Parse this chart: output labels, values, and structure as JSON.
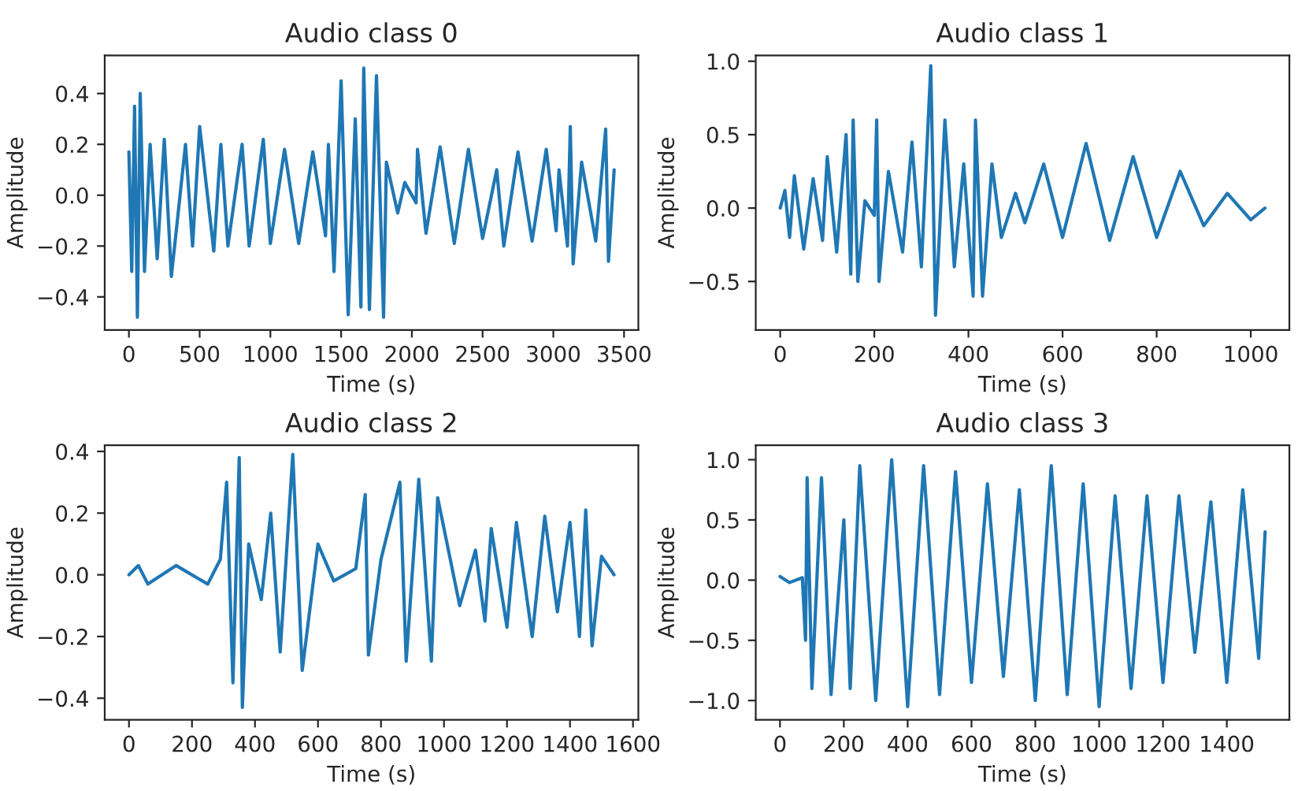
{
  "chart_data": [
    {
      "type": "line",
      "title": "Audio class 0",
      "xlabel": "Time (s)",
      "ylabel": "Amplitude",
      "xlim": [
        -171,
        3601
      ],
      "ylim": [
        -0.53,
        0.55
      ],
      "xticks": [
        0,
        500,
        1000,
        1500,
        2000,
        2500,
        3000,
        3500
      ],
      "yticks": [
        {
          "value": -0.4,
          "label": "−0.4"
        },
        {
          "value": -0.2,
          "label": "−0.2"
        },
        {
          "value": 0.0,
          "label": "0.0"
        },
        {
          "value": 0.2,
          "label": "0.2"
        },
        {
          "value": 0.4,
          "label": "0.4"
        }
      ],
      "grid": false,
      "legend": false,
      "series": [
        {
          "color": "#1f77b4",
          "x": [
            0,
            20,
            40,
            60,
            80,
            110,
            150,
            200,
            250,
            300,
            400,
            450,
            500,
            600,
            650,
            700,
            800,
            850,
            950,
            1000,
            1100,
            1200,
            1300,
            1390,
            1410,
            1450,
            1500,
            1550,
            1600,
            1640,
            1660,
            1700,
            1750,
            1800,
            1820,
            1900,
            1950,
            2030,
            2040,
            2100,
            2200,
            2300,
            2400,
            2500,
            2600,
            2650,
            2750,
            2850,
            2950,
            3020,
            3040,
            3100,
            3120,
            3140,
            3200,
            3300,
            3370,
            3390,
            3430
          ],
          "values": [
            0.17,
            -0.3,
            0.35,
            -0.48,
            0.4,
            -0.3,
            0.2,
            -0.25,
            0.22,
            -0.32,
            0.2,
            -0.2,
            0.27,
            -0.22,
            0.2,
            -0.2,
            0.2,
            -0.2,
            0.22,
            -0.19,
            0.18,
            -0.19,
            0.17,
            -0.16,
            0.2,
            -0.3,
            0.45,
            -0.47,
            0.3,
            -0.44,
            0.5,
            -0.45,
            0.47,
            -0.48,
            0.13,
            -0.07,
            0.05,
            -0.03,
            0.18,
            -0.15,
            0.19,
            -0.19,
            0.18,
            -0.17,
            0.1,
            -0.2,
            0.17,
            -0.18,
            0.18,
            -0.14,
            0.1,
            -0.2,
            0.27,
            -0.27,
            0.13,
            -0.18,
            0.26,
            -0.26,
            0.1
          ]
        }
      ]
    },
    {
      "type": "line",
      "title": "Audio class 1",
      "xlabel": "Time (s)",
      "ylabel": "Amplitude",
      "xlim": [
        -52,
        1082
      ],
      "ylim": [
        -0.83,
        1.04
      ],
      "xticks": [
        0,
        200,
        400,
        600,
        800,
        1000
      ],
      "yticks": [
        {
          "value": -0.5,
          "label": "−0.5"
        },
        {
          "value": 0.0,
          "label": "0.0"
        },
        {
          "value": 0.5,
          "label": "0.5"
        },
        {
          "value": 1.0,
          "label": "1.0"
        }
      ],
      "grid": false,
      "legend": false,
      "series": [
        {
          "color": "#1f77b4",
          "x": [
            0,
            10,
            20,
            30,
            50,
            70,
            90,
            100,
            120,
            140,
            150,
            155,
            165,
            180,
            200,
            205,
            210,
            230,
            260,
            280,
            300,
            320,
            330,
            350,
            370,
            390,
            410,
            415,
            430,
            450,
            470,
            500,
            520,
            560,
            600,
            650,
            700,
            750,
            800,
            850,
            900,
            950,
            1000,
            1030
          ],
          "values": [
            0.0,
            0.12,
            -0.2,
            0.22,
            -0.28,
            0.2,
            -0.22,
            0.35,
            -0.3,
            0.5,
            -0.45,
            0.6,
            -0.5,
            0.05,
            -0.05,
            0.6,
            -0.5,
            0.25,
            -0.3,
            0.45,
            -0.4,
            0.97,
            -0.73,
            0.6,
            -0.4,
            0.3,
            -0.6,
            0.6,
            -0.6,
            0.3,
            -0.2,
            0.1,
            -0.1,
            0.3,
            -0.2,
            0.44,
            -0.22,
            0.35,
            -0.2,
            0.25,
            -0.12,
            0.1,
            -0.08,
            0.0
          ]
        }
      ]
    },
    {
      "type": "line",
      "title": "Audio class 2",
      "xlabel": "Time (s)",
      "ylabel": "Amplitude",
      "xlim": [
        -77,
        1617
      ],
      "ylim": [
        -0.47,
        0.42
      ],
      "xticks": [
        0,
        200,
        400,
        600,
        800,
        1000,
        1200,
        1400,
        1600
      ],
      "yticks": [
        {
          "value": -0.4,
          "label": "−0.4"
        },
        {
          "value": -0.2,
          "label": "−0.2"
        },
        {
          "value": 0.0,
          "label": "0.0"
        },
        {
          "value": 0.2,
          "label": "0.2"
        },
        {
          "value": 0.4,
          "label": "0.4"
        }
      ],
      "grid": false,
      "legend": false,
      "series": [
        {
          "color": "#1f77b4",
          "x": [
            0,
            30,
            60,
            150,
            250,
            290,
            310,
            330,
            350,
            360,
            380,
            420,
            450,
            480,
            520,
            550,
            600,
            650,
            720,
            750,
            760,
            800,
            860,
            880,
            920,
            960,
            980,
            1050,
            1100,
            1130,
            1150,
            1200,
            1230,
            1280,
            1320,
            1360,
            1400,
            1430,
            1450,
            1470,
            1500,
            1540
          ],
          "values": [
            0.0,
            0.03,
            -0.03,
            0.03,
            -0.03,
            0.05,
            0.3,
            -0.35,
            0.38,
            -0.43,
            0.1,
            -0.08,
            0.2,
            -0.25,
            0.39,
            -0.31,
            0.1,
            -0.02,
            0.02,
            0.26,
            -0.26,
            0.05,
            0.3,
            -0.28,
            0.31,
            -0.28,
            0.25,
            -0.1,
            0.08,
            -0.15,
            0.15,
            -0.17,
            0.17,
            -0.2,
            0.19,
            -0.12,
            0.17,
            -0.2,
            0.21,
            -0.23,
            0.06,
            0.0
          ]
        }
      ]
    },
    {
      "type": "line",
      "title": "Audio class 3",
      "xlabel": "Time (s)",
      "ylabel": "Amplitude",
      "xlim": [
        -76,
        1596
      ],
      "ylim": [
        -1.16,
        1.12
      ],
      "xticks": [
        0,
        200,
        400,
        600,
        800,
        1000,
        1200,
        1400
      ],
      "yticks": [
        {
          "value": -1.0,
          "label": "−1.0"
        },
        {
          "value": -0.5,
          "label": "−0.5"
        },
        {
          "value": 0.0,
          "label": "0.0"
        },
        {
          "value": 0.5,
          "label": "0.5"
        },
        {
          "value": 1.0,
          "label": "1.0"
        }
      ],
      "grid": false,
      "legend": false,
      "series": [
        {
          "color": "#1f77b4",
          "x": [
            0,
            30,
            70,
            80,
            85,
            100,
            130,
            160,
            200,
            220,
            250,
            300,
            350,
            400,
            450,
            500,
            550,
            600,
            650,
            700,
            750,
            800,
            850,
            900,
            950,
            1000,
            1050,
            1100,
            1150,
            1200,
            1250,
            1300,
            1350,
            1400,
            1450,
            1500,
            1520
          ],
          "values": [
            0.03,
            -0.02,
            0.02,
            -0.5,
            0.85,
            -0.9,
            0.85,
            -0.95,
            0.5,
            -0.9,
            0.95,
            -1.0,
            1.0,
            -1.05,
            0.95,
            -0.95,
            0.9,
            -0.85,
            0.8,
            -0.8,
            0.75,
            -1.0,
            0.95,
            -0.95,
            0.8,
            -1.05,
            0.7,
            -0.9,
            0.7,
            -0.85,
            0.7,
            -0.6,
            0.65,
            -0.85,
            0.75,
            -0.65,
            0.4
          ]
        }
      ]
    }
  ]
}
